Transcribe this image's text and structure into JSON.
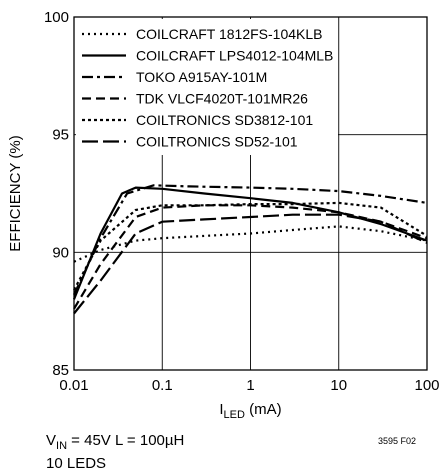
{
  "chart_data": {
    "type": "line",
    "title": "",
    "xlabel_main": "I",
    "xlabel_sub": "LED",
    "xlabel_unit": " (mA)",
    "ylabel": "EFFICIENCY (%)",
    "x_scale": "log",
    "xlim": [
      0.01,
      100
    ],
    "ylim": [
      85,
      100
    ],
    "grid": true,
    "legend_position": "top-left",
    "x_ticks": [
      {
        "value": 0.01,
        "label": "0.01"
      },
      {
        "value": 0.1,
        "label": "0.1"
      },
      {
        "value": 1,
        "label": "1"
      },
      {
        "value": 10,
        "label": "10"
      },
      {
        "value": 100,
        "label": "100"
      }
    ],
    "y_ticks": [
      {
        "value": 85,
        "label": "85"
      },
      {
        "value": 90,
        "label": "90"
      },
      {
        "value": 95,
        "label": "95"
      },
      {
        "value": 100,
        "label": "100"
      }
    ],
    "series": [
      {
        "name": "COILCRAFT 1812FS-104KLB",
        "dash": "2,4",
        "points": [
          [
            0.01,
            89.6
          ],
          [
            0.02,
            90.1
          ],
          [
            0.05,
            90.5
          ],
          [
            0.1,
            90.6
          ],
          [
            0.3,
            90.7
          ],
          [
            1,
            90.8
          ],
          [
            3,
            90.95
          ],
          [
            10,
            91.1
          ],
          [
            30,
            90.9
          ],
          [
            100,
            90.5
          ]
        ]
      },
      {
        "name": "COILCRAFT LPS4012-104MLB",
        "dash": "",
        "points": [
          [
            0.01,
            88.0
          ],
          [
            0.02,
            90.8
          ],
          [
            0.035,
            92.5
          ],
          [
            0.05,
            92.75
          ],
          [
            0.1,
            92.7
          ],
          [
            0.3,
            92.5
          ],
          [
            1,
            92.3
          ],
          [
            3,
            92.1
          ],
          [
            10,
            91.7
          ],
          [
            30,
            91.2
          ],
          [
            100,
            90.5
          ]
        ]
      },
      {
        "name": "TOKO A915AY-101M",
        "dash": "11,4,3,4",
        "points": [
          [
            0.01,
            88.2
          ],
          [
            0.02,
            90.6
          ],
          [
            0.04,
            92.5
          ],
          [
            0.08,
            92.85
          ],
          [
            0.2,
            92.8
          ],
          [
            1,
            92.75
          ],
          [
            3,
            92.7
          ],
          [
            10,
            92.6
          ],
          [
            30,
            92.4
          ],
          [
            100,
            92.1
          ]
        ]
      },
      {
        "name": "TDK VLCF4020T-101MR26",
        "dash": "9,5",
        "points": [
          [
            0.01,
            87.6
          ],
          [
            0.02,
            89.5
          ],
          [
            0.05,
            91.5
          ],
          [
            0.1,
            91.9
          ],
          [
            0.3,
            92.0
          ],
          [
            1,
            92.0
          ],
          [
            3,
            91.9
          ],
          [
            10,
            91.7
          ],
          [
            30,
            91.3
          ],
          [
            100,
            90.6
          ]
        ]
      },
      {
        "name": "COILTRONICS SD3812-101",
        "dash": "3,3",
        "points": [
          [
            0.01,
            88.4
          ],
          [
            0.02,
            90.5
          ],
          [
            0.05,
            91.8
          ],
          [
            0.1,
            92.0
          ],
          [
            0.3,
            92.0
          ],
          [
            1,
            92.05
          ],
          [
            3,
            92.05
          ],
          [
            10,
            92.1
          ],
          [
            30,
            91.9
          ],
          [
            100,
            90.7
          ]
        ]
      },
      {
        "name": "COILTRONICS SD52-101",
        "dash": "16,5",
        "points": [
          [
            0.01,
            87.4
          ],
          [
            0.02,
            88.8
          ],
          [
            0.05,
            90.8
          ],
          [
            0.1,
            91.3
          ],
          [
            0.3,
            91.4
          ],
          [
            1,
            91.5
          ],
          [
            3,
            91.6
          ],
          [
            10,
            91.6
          ],
          [
            30,
            91.3
          ],
          [
            100,
            90.4
          ]
        ]
      }
    ]
  },
  "conditions": {
    "line1_v": "V",
    "line1_sub": "IN",
    "line1_rest": " = 45V   L = 100µH",
    "line2": "10 LEDS"
  },
  "figure_code": "3595 F02"
}
